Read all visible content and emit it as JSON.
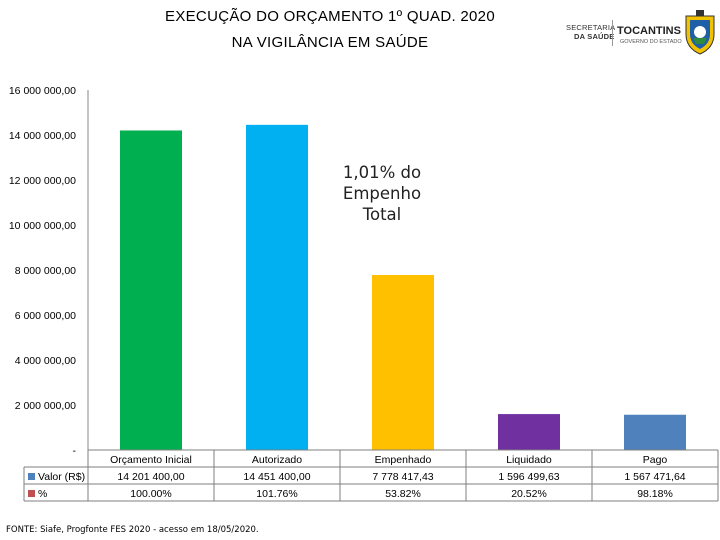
{
  "header": {
    "title_line1": "EXECUÇÃO DO ORÇAMENTO  1º QUAD. 2020",
    "title_line2": "NA VIGILÂNCIA EM SAÚDE"
  },
  "logos": {
    "secretaria_line1": "SECRETARIA",
    "secretaria_line2": "DA SAÚDE",
    "state_name": "TOCANTINS",
    "state_sub": "GOVERNO DO ESTADO"
  },
  "chart_data": {
    "type": "bar",
    "categories": [
      "Orçamento Inicial",
      "Autorizado",
      "Empenhado",
      "Liquidado",
      "Pago"
    ],
    "values": [
      14201400.0,
      14451400.0,
      7778417.43,
      1596499.63,
      1567471.64
    ],
    "colors": [
      "#00b050",
      "#00b0f0",
      "#ffc000",
      "#7030a0",
      "#4f81bd"
    ],
    "ylim": [
      0,
      16000000
    ],
    "ytick_labels": [
      "-",
      "2 000 000,00",
      "4 000 000,00",
      "6 000 000,00",
      "8 000 000,00",
      "10 000 000,00",
      "12 000 000,00",
      "14 000 000,00",
      "16 000 000,00"
    ],
    "grid": false,
    "annotation": [
      "1,01% do",
      "Empenho",
      "Total"
    ],
    "data_table": {
      "rows": [
        {
          "label": "Valor (R$)",
          "marker_color": "#4f81bd",
          "cells": [
            "14 201 400,00",
            "14 451 400,00",
            "7 778 417,43",
            "1 596 499,63",
            "1 567 471,64"
          ]
        },
        {
          "label": "%",
          "marker_color": "#c0504d",
          "cells": [
            "100.00%",
            "101.76%",
            "53.82%",
            "20.52%",
            "98.18%"
          ]
        }
      ]
    }
  },
  "footer": {
    "source": "FONTE: Siafe, Progfonte FES 2020 - acesso em 18/05/2020."
  }
}
